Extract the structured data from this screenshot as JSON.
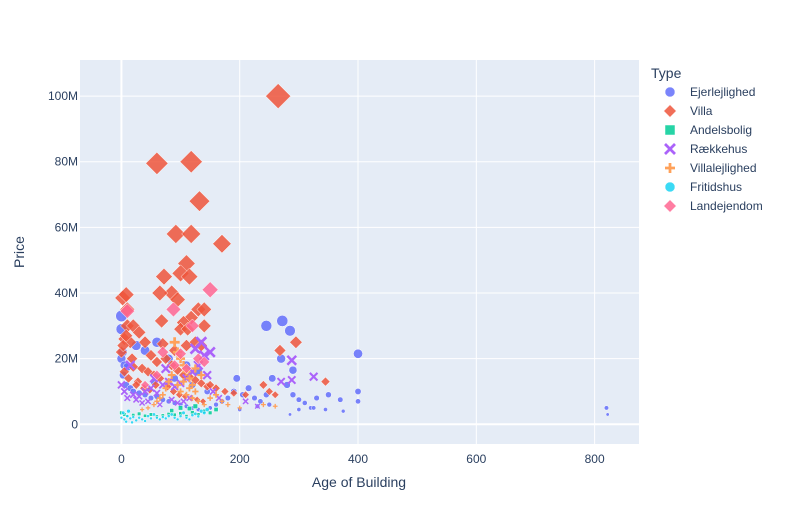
{
  "chart_data": {
    "type": "scatter",
    "title": "",
    "xlabel": "Age of Building",
    "ylabel": "Price",
    "xlim": [
      -70,
      875
    ],
    "ylim": [
      -6000000,
      111000000
    ],
    "x_ticks": [
      0,
      200,
      400,
      600,
      800
    ],
    "y_ticks": [
      0,
      20000000,
      40000000,
      60000000,
      80000000,
      100000000
    ],
    "y_tick_labels": [
      "0",
      "20M",
      "40M",
      "60M",
      "80M",
      "100M"
    ],
    "grid": true,
    "legend": {
      "title": "Type",
      "placement": "right"
    },
    "marker_size_encodes": "Price",
    "series": [
      {
        "name": "Ejerlejlighed",
        "color": "#636efa",
        "symbol": "circle",
        "points": [
          [
            0,
            33000000
          ],
          [
            0,
            29000000
          ],
          [
            2,
            22000000
          ],
          [
            0,
            20000000
          ],
          [
            5,
            18000000
          ],
          [
            10,
            17500000
          ],
          [
            3,
            15000000
          ],
          [
            8,
            12000000
          ],
          [
            15,
            11000000
          ],
          [
            20,
            10000000
          ],
          [
            30,
            9500000
          ],
          [
            40,
            9000000
          ],
          [
            50,
            8000000
          ],
          [
            60,
            8500000
          ],
          [
            70,
            7500000
          ],
          [
            80,
            7000000
          ],
          [
            90,
            6500000
          ],
          [
            100,
            6000000
          ],
          [
            110,
            5500000
          ],
          [
            120,
            5000000
          ],
          [
            130,
            4500000
          ],
          [
            140,
            4000000
          ],
          [
            150,
            5000000
          ],
          [
            160,
            6000000
          ],
          [
            170,
            7000000
          ],
          [
            180,
            8000000
          ],
          [
            190,
            10000000
          ],
          [
            195,
            14000000
          ],
          [
            205,
            9000000
          ],
          [
            215,
            11000000
          ],
          [
            225,
            8000000
          ],
          [
            235,
            7000000
          ],
          [
            245,
            9000000
          ],
          [
            255,
            14000000
          ],
          [
            245,
            30000000
          ],
          [
            272,
            31500000
          ],
          [
            285,
            28500000
          ],
          [
            270,
            20000000
          ],
          [
            290,
            16500000
          ],
          [
            280,
            12000000
          ],
          [
            290,
            9000000
          ],
          [
            300,
            7500000
          ],
          [
            310,
            6500000
          ],
          [
            320,
            5000000
          ],
          [
            300,
            4500000
          ],
          [
            330,
            8000000
          ],
          [
            350,
            9000000
          ],
          [
            370,
            7500000
          ],
          [
            400,
            10000000
          ],
          [
            400,
            7000000
          ],
          [
            400,
            21500000
          ],
          [
            375,
            4000000
          ],
          [
            325,
            5000000
          ],
          [
            345,
            4500000
          ],
          [
            820,
            5000000
          ],
          [
            822,
            3000000
          ],
          [
            285,
            3000000
          ],
          [
            230,
            5500000
          ],
          [
            250,
            6000000
          ],
          [
            200,
            4500000
          ],
          [
            60,
            25000000
          ],
          [
            40,
            22500000
          ],
          [
            25,
            24000000
          ],
          [
            80,
            20000000
          ],
          [
            110,
            18000000
          ],
          [
            130,
            16000000
          ],
          [
            90,
            14000000
          ],
          [
            120,
            12000000
          ],
          [
            145,
            10000000
          ],
          [
            55,
            13000000
          ]
        ]
      },
      {
        "name": "Villa",
        "color": "#ef553b",
        "symbol": "diamond",
        "points": [
          [
            265,
            100000000
          ],
          [
            60,
            79500000
          ],
          [
            118,
            80000000
          ],
          [
            132,
            68000000
          ],
          [
            92,
            58000000
          ],
          [
            118,
            58000000
          ],
          [
            170,
            55000000
          ],
          [
            110,
            49000000
          ],
          [
            72,
            45000000
          ],
          [
            100,
            46000000
          ],
          [
            115,
            45000000
          ],
          [
            85,
            40000000
          ],
          [
            65,
            40000000
          ],
          [
            95,
            38000000
          ],
          [
            2,
            38500000
          ],
          [
            8,
            39500000
          ],
          [
            10,
            35000000
          ],
          [
            130,
            35000000
          ],
          [
            140,
            35000000
          ],
          [
            118,
            32500000
          ],
          [
            68,
            31500000
          ],
          [
            140,
            30000000
          ],
          [
            105,
            31000000
          ],
          [
            10,
            30000000
          ],
          [
            20,
            30000000
          ],
          [
            30,
            28000000
          ],
          [
            100,
            29000000
          ],
          [
            112,
            29000000
          ],
          [
            5,
            26000000
          ],
          [
            15,
            25000000
          ],
          [
            40,
            25000000
          ],
          [
            70,
            24500000
          ],
          [
            125,
            25000000
          ],
          [
            135,
            24000000
          ],
          [
            110,
            24000000
          ],
          [
            90,
            22500000
          ],
          [
            268,
            22500000
          ],
          [
            295,
            25000000
          ],
          [
            50,
            21000000
          ],
          [
            60,
            19000000
          ],
          [
            75,
            20000000
          ],
          [
            85,
            18000000
          ],
          [
            20,
            17500000
          ],
          [
            35,
            17000000
          ],
          [
            45,
            16000000
          ],
          [
            55,
            15000000
          ],
          [
            65,
            14000000
          ],
          [
            95,
            16500000
          ],
          [
            105,
            15000000
          ],
          [
            115,
            14500000
          ],
          [
            125,
            13500000
          ],
          [
            135,
            12500000
          ],
          [
            145,
            11500000
          ],
          [
            5,
            16000000
          ],
          [
            12,
            14000000
          ],
          [
            28,
            13000000
          ],
          [
            150,
            12000000
          ],
          [
            160,
            11000000
          ],
          [
            175,
            10000000
          ],
          [
            190,
            9500000
          ],
          [
            210,
            9000000
          ],
          [
            240,
            12000000
          ],
          [
            250,
            10000000
          ],
          [
            260,
            9000000
          ],
          [
            345,
            13000000
          ],
          [
            0,
            22000000
          ],
          [
            3,
            24000000
          ],
          [
            8,
            27000000
          ],
          [
            18,
            20000000
          ],
          [
            25,
            12000000
          ],
          [
            38,
            11000000
          ],
          [
            48,
            10500000
          ],
          [
            58,
            12000000
          ],
          [
            78,
            11500000
          ],
          [
            88,
            10000000
          ],
          [
            98,
            9000000
          ],
          [
            108,
            8500000
          ],
          [
            118,
            8000000
          ],
          [
            128,
            7500000
          ],
          [
            138,
            7000000
          ]
        ]
      },
      {
        "name": "Andelsbolig",
        "color": "#00cc96",
        "symbol": "square",
        "points": [
          [
            0,
            3500000
          ],
          [
            5,
            3000000
          ],
          [
            10,
            2500000
          ],
          [
            20,
            2800000
          ],
          [
            30,
            3200000
          ],
          [
            40,
            2600000
          ],
          [
            50,
            3000000
          ],
          [
            60,
            2400000
          ],
          [
            70,
            2700000
          ],
          [
            80,
            3100000
          ],
          [
            90,
            2900000
          ],
          [
            100,
            3300000
          ],
          [
            110,
            2500000
          ],
          [
            120,
            3600000
          ],
          [
            130,
            3000000
          ],
          [
            140,
            4000000
          ],
          [
            150,
            3500000
          ],
          [
            160,
            4500000
          ],
          [
            100,
            5000000
          ],
          [
            85,
            4200000
          ],
          [
            115,
            4800000
          ],
          [
            125,
            5500000
          ]
        ]
      },
      {
        "name": "Rækkehus",
        "color": "#ab63fa",
        "symbol": "x",
        "points": [
          [
            0,
            12000000
          ],
          [
            5,
            10000000
          ],
          [
            10,
            8000000
          ],
          [
            20,
            9000000
          ],
          [
            30,
            8500000
          ],
          [
            40,
            10000000
          ],
          [
            50,
            11000000
          ],
          [
            60,
            9500000
          ],
          [
            70,
            12000000
          ],
          [
            80,
            13000000
          ],
          [
            90,
            11500000
          ],
          [
            100,
            12500000
          ],
          [
            110,
            14000000
          ],
          [
            120,
            16000000
          ],
          [
            130,
            18000000
          ],
          [
            140,
            21000000
          ],
          [
            150,
            22000000
          ],
          [
            145,
            15000000
          ],
          [
            135,
            25000000
          ],
          [
            125,
            23000000
          ],
          [
            75,
            17000000
          ],
          [
            55,
            14000000
          ],
          [
            270,
            13000000
          ],
          [
            288,
            13500000
          ],
          [
            288,
            19500000
          ],
          [
            325,
            14500000
          ],
          [
            15,
            18000000
          ],
          [
            25,
            7500000
          ],
          [
            35,
            6500000
          ],
          [
            45,
            7000000
          ],
          [
            65,
            6000000
          ],
          [
            85,
            7500000
          ],
          [
            95,
            6500000
          ],
          [
            105,
            7000000
          ],
          [
            115,
            8000000
          ],
          [
            155,
            10000000
          ],
          [
            165,
            8000000
          ],
          [
            210,
            7000000
          ],
          [
            230,
            5500000
          ]
        ]
      },
      {
        "name": "Villalejlighed",
        "color": "#ffa15a",
        "symbol": "cross",
        "points": [
          [
            90,
            25000000
          ],
          [
            95,
            22000000
          ],
          [
            100,
            20000000
          ],
          [
            105,
            18000000
          ],
          [
            110,
            16000000
          ],
          [
            115,
            14000000
          ],
          [
            120,
            12000000
          ],
          [
            125,
            10000000
          ],
          [
            85,
            15000000
          ],
          [
            80,
            13000000
          ],
          [
            75,
            11000000
          ],
          [
            70,
            9000000
          ],
          [
            65,
            8000000
          ],
          [
            60,
            7000000
          ],
          [
            55,
            6000000
          ],
          [
            100,
            10000000
          ],
          [
            110,
            9000000
          ],
          [
            120,
            8000000
          ],
          [
            130,
            7000000
          ],
          [
            140,
            6000000
          ],
          [
            95,
            12000000
          ],
          [
            105,
            13000000
          ],
          [
            115,
            11000000
          ],
          [
            125,
            17000000
          ],
          [
            135,
            15000000
          ],
          [
            45,
            5000000
          ],
          [
            35,
            4500000
          ],
          [
            150,
            8000000
          ],
          [
            160,
            9000000
          ],
          [
            170,
            7000000
          ],
          [
            180,
            6000000
          ],
          [
            200,
            5000000
          ],
          [
            240,
            6000000
          ],
          [
            260,
            5500000
          ]
        ]
      },
      {
        "name": "Fritidshus",
        "color": "#19d3f3",
        "symbol": "circle",
        "points": [
          [
            0,
            2000000
          ],
          [
            5,
            1500000
          ],
          [
            10,
            2500000
          ],
          [
            15,
            1800000
          ],
          [
            20,
            2200000
          ],
          [
            25,
            1200000
          ],
          [
            30,
            2000000
          ],
          [
            35,
            1500000
          ],
          [
            40,
            1000000
          ],
          [
            45,
            2500000
          ],
          [
            50,
            1800000
          ],
          [
            55,
            3000000
          ],
          [
            60,
            2000000
          ],
          [
            65,
            1500000
          ],
          [
            70,
            2200000
          ],
          [
            75,
            1800000
          ],
          [
            80,
            2500000
          ],
          [
            85,
            3000000
          ],
          [
            90,
            2000000
          ],
          [
            95,
            1500000
          ],
          [
            100,
            2500000
          ],
          [
            105,
            3500000
          ],
          [
            110,
            2000000
          ],
          [
            115,
            1500000
          ],
          [
            120,
            2800000
          ],
          [
            125,
            3200000
          ],
          [
            130,
            2400000
          ],
          [
            135,
            4000000
          ],
          [
            140,
            3500000
          ],
          [
            145,
            4500000
          ],
          [
            3,
            3500000
          ],
          [
            12,
            4000000
          ],
          [
            8,
            800000
          ],
          [
            18,
            600000
          ]
        ]
      },
      {
        "name": "Landejendom",
        "color": "#ff6692",
        "symbol": "diamond",
        "points": [
          [
            150,
            41000000
          ],
          [
            120,
            30000000
          ],
          [
            88,
            35000000
          ],
          [
            10,
            34500000
          ],
          [
            100,
            21500000
          ],
          [
            70,
            22000000
          ],
          [
            60,
            15000000
          ],
          [
            40,
            12000000
          ],
          [
            130,
            20000000
          ],
          [
            90,
            18000000
          ],
          [
            110,
            17000000
          ],
          [
            140,
            19000000
          ]
        ]
      }
    ]
  }
}
